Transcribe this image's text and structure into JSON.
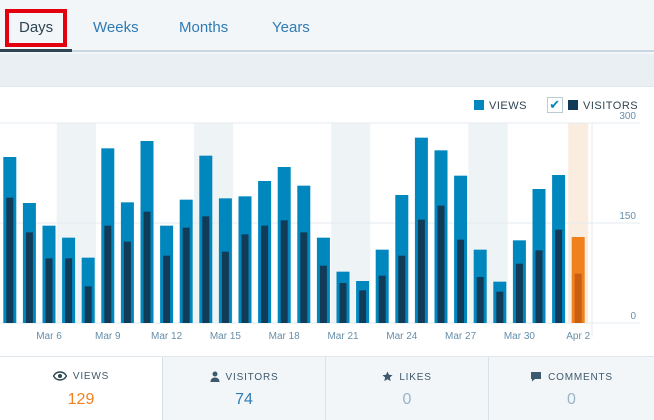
{
  "tabs": [
    {
      "label": "Days",
      "active": true
    },
    {
      "label": "Weeks",
      "active": false
    },
    {
      "label": "Months",
      "active": false
    },
    {
      "label": "Years",
      "active": false
    }
  ],
  "legend": {
    "views_label": "VIEWS",
    "visitors_label": "VISITORS",
    "visitors_checked": true
  },
  "chart_data": {
    "type": "bar",
    "categories": [
      "Mar 4",
      "Mar 5",
      "Mar 6",
      "Mar 7",
      "Mar 8",
      "Mar 9",
      "Mar 10",
      "Mar 11",
      "Mar 12",
      "Mar 13",
      "Mar 14",
      "Mar 15",
      "Mar 16",
      "Mar 17",
      "Mar 18",
      "Mar 19",
      "Mar 20",
      "Mar 21",
      "Mar 22",
      "Mar 23",
      "Mar 24",
      "Mar 25",
      "Mar 26",
      "Mar 27",
      "Mar 28",
      "Mar 29",
      "Mar 30",
      "Mar 31",
      "Apr 1",
      "Apr 2"
    ],
    "tick_labels": [
      "Mar 6",
      "Mar 9",
      "Mar 12",
      "Mar 15",
      "Mar 18",
      "Mar 21",
      "Mar 24",
      "Mar 27",
      "Mar 30",
      "Apr 2"
    ],
    "series": [
      {
        "name": "VIEWS",
        "values": [
          249,
          180,
          146,
          128,
          98,
          262,
          181,
          273,
          146,
          185,
          251,
          187,
          190,
          213,
          234,
          206,
          128,
          77,
          63,
          110,
          192,
          278,
          259,
          221,
          110,
          62,
          124,
          201,
          222,
          129
        ]
      },
      {
        "name": "VISITORS",
        "values": [
          188,
          136,
          97,
          97,
          55,
          146,
          122,
          167,
          101,
          143,
          160,
          107,
          133,
          146,
          154,
          136,
          86,
          60,
          49,
          71,
          101,
          155,
          176,
          125,
          69,
          47,
          89,
          109,
          140,
          74
        ]
      }
    ],
    "ylim": [
      0,
      300
    ],
    "yticks": [
      0,
      150,
      300
    ],
    "weekend_indices": [
      3,
      10,
      17,
      24
    ],
    "selected_index": 29,
    "colors": {
      "views": "#0087be",
      "visitors": "#123b57",
      "selected_views": "#f0821e",
      "selected_visitors": "#c95f10",
      "weekend": "#eef3f6",
      "selected_band": "#fbece0"
    },
    "grid": true
  },
  "stats": [
    {
      "label": "VIEWS",
      "value": "129",
      "icon": "eye-icon",
      "selected": true
    },
    {
      "label": "VISITORS",
      "value": "74",
      "icon": "person-icon",
      "selected": false
    },
    {
      "label": "LIKES",
      "value": "0",
      "icon": "star-icon",
      "selected": false
    },
    {
      "label": "COMMENTS",
      "value": "0",
      "icon": "comment-icon",
      "selected": false
    }
  ]
}
